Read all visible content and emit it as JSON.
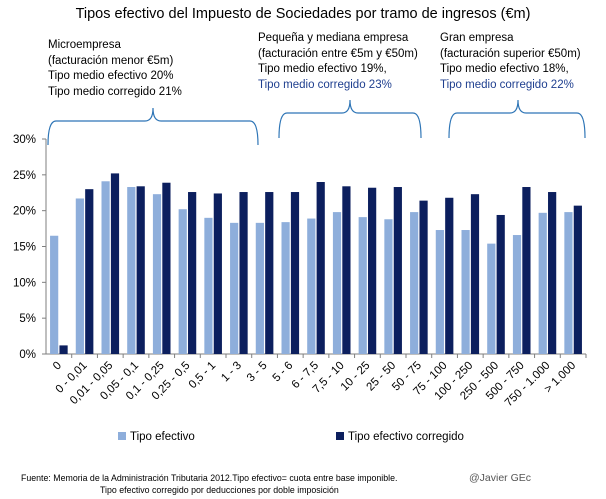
{
  "chart_data": {
    "type": "bar",
    "title": "Tipos efectivo del Impuesto de Sociedades  por tramo de ingresos (€m)",
    "categories": [
      "0",
      "0 - 0,01",
      "0,01 - 0,05",
      "0,05 - 0,1",
      "0,1 - 0,25",
      "0,25 - 0,5",
      "0,5 - 1",
      "1 - 3",
      "3 - 5",
      "5 - 6",
      "6 - 7,5",
      "7,5 - 10",
      "10 - 25",
      "25 - 50",
      "50 - 75",
      "75 - 100",
      "100 - 250",
      "250 - 500",
      "500 - 750",
      "750 - 1.000",
      "> 1.000"
    ],
    "series": [
      {
        "name": "Tipo efectivo",
        "color": "#8eaedb",
        "values": [
          16.5,
          21.7,
          24.1,
          23.3,
          22.3,
          20.2,
          19.0,
          18.3,
          18.3,
          18.4,
          18.9,
          19.8,
          19.1,
          18.8,
          19.8,
          17.3,
          17.3,
          15.4,
          16.6,
          19.7,
          19.8
        ]
      },
      {
        "name": "Tipo efectivo corregido",
        "color": "#0c1f5e",
        "values": [
          1.2,
          23.0,
          25.2,
          23.4,
          23.9,
          22.6,
          22.4,
          22.6,
          22.6,
          22.6,
          24.0,
          23.4,
          23.2,
          23.3,
          21.4,
          21.8,
          22.3,
          19.4,
          23.3,
          22.6,
          20.7
        ]
      }
    ],
    "y_ticks": [
      "0%",
      "5%",
      "10%",
      "15%",
      "20%",
      "25%",
      "30%"
    ],
    "ylim": [
      0,
      30
    ],
    "legend_position": "bottom"
  },
  "annotations": {
    "micro": {
      "line1": "Microempresa",
      "line2": "(facturación menor €5m)",
      "line3": "Tipo medio efectivo 20%",
      "line4": "Tipo medio  corregido 21%"
    },
    "pyme": {
      "line1": "Pequeña y mediana empresa",
      "line2": "(facturación entre €5m y €50m)",
      "line3": "Tipo medio efectivo 19%,",
      "line4": "Tipo medio corregido 23%"
    },
    "gran": {
      "line1": "Gran empresa",
      "line2": "(facturación superior  €50m)",
      "line3": "Tipo medio efectivo 18%,",
      "line4": "Tipo medio corregido 22%"
    }
  },
  "footer": {
    "source_line1": "Fuente: Memoria de la Administración Tributaria 2012.Tipo efectivo= cuota entre base imponible.",
    "source_line2": "Tipo efectivo corregido por deducciones por doble imposición",
    "handle": "@Javier GEc"
  },
  "colors": {
    "series1": "#8eaedb",
    "series2": "#0c1f5e",
    "bracket": "#2e75b6",
    "axis": "#7f7f7f"
  }
}
